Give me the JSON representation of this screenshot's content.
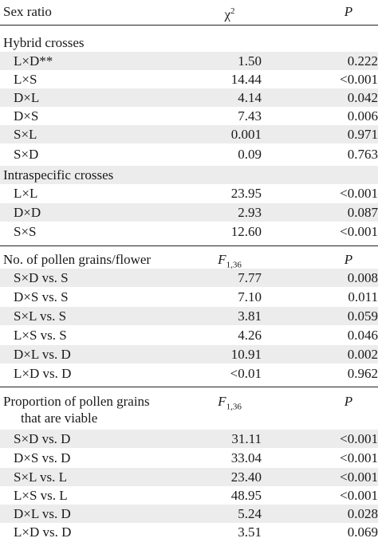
{
  "header": {
    "col1": "Sex ratio",
    "col2": "χ",
    "col2_sup": "2",
    "col3": "P"
  },
  "sections": [
    {
      "title": "Hybrid crosses",
      "rows": [
        {
          "label": "L×D**",
          "value": "1.50",
          "p": "0.222"
        },
        {
          "label": "L×S",
          "value": "14.44",
          "p": "<0.001"
        },
        {
          "label": "D×L",
          "value": "4.14",
          "p": "0.042"
        },
        {
          "label": "D×S",
          "value": "7.43",
          "p": "0.006"
        },
        {
          "label": "S×L",
          "value": "0.001",
          "p": "0.971"
        },
        {
          "label": "S×D",
          "value": "0.09",
          "p": "0.763"
        }
      ]
    },
    {
      "title": "Intraspecific crosses",
      "rows": [
        {
          "label": "L×L",
          "value": "23.95",
          "p": "<0.001"
        },
        {
          "label": "D×D",
          "value": "2.93",
          "p": "0.087"
        },
        {
          "label": "S×S",
          "value": "12.60",
          "p": "<0.001"
        }
      ]
    },
    {
      "title": "No. of pollen grains/flower",
      "stat": "F",
      "stat_sub": "1,36",
      "p_header": "P",
      "rows": [
        {
          "label": "S×D vs. S",
          "value": "7.77",
          "p": "0.008"
        },
        {
          "label": "D×S vs. S",
          "value": "7.10",
          "p": "0.011"
        },
        {
          "label": "S×L vs. S",
          "value": "3.81",
          "p": "0.059"
        },
        {
          "label": "L×S vs. S",
          "value": "4.26",
          "p": "0.046"
        },
        {
          "label": "D×L vs. D",
          "value": "10.91",
          "p": "0.002"
        },
        {
          "label": "L×D vs. D",
          "value": "<0.01",
          "p": "0.962"
        }
      ]
    },
    {
      "title": "Proportion of pollen grains",
      "title_line2": "that are viable",
      "stat": "F",
      "stat_sub": "1,36",
      "p_header": "P",
      "rows": [
        {
          "label": "S×D vs. D",
          "value": "31.11",
          "p": "<0.001"
        },
        {
          "label": "D×S vs. D",
          "value": "33.04",
          "p": "<0.001"
        },
        {
          "label": "S×L vs. L",
          "value": "23.40",
          "p": "<0.001"
        },
        {
          "label": "L×S vs. L",
          "value": "48.95",
          "p": "<0.001"
        },
        {
          "label": "D×L vs. D",
          "value": "5.24",
          "p": "0.028"
        },
        {
          "label": "L×D vs. D",
          "value": "3.51",
          "p": "0.069"
        }
      ]
    }
  ]
}
